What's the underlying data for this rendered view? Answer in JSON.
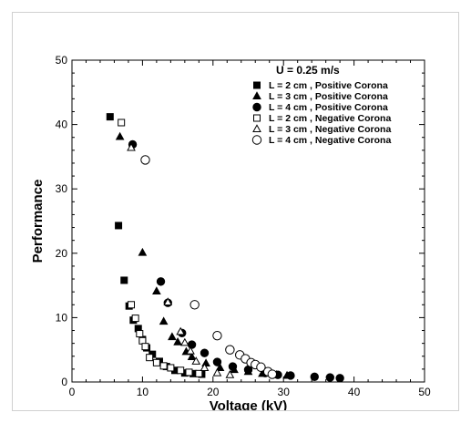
{
  "chart_data": {
    "type": "scatter",
    "title": "",
    "xlabel": "Voltage (kV)",
    "ylabel": "Performance",
    "xlim": [
      0,
      50
    ],
    "ylim": [
      0,
      50
    ],
    "xticks": [
      "0",
      "10",
      "20",
      "30",
      "40",
      "50"
    ],
    "yticks": [
      "0",
      "10",
      "20",
      "30",
      "40",
      "50"
    ],
    "grid": false,
    "legend_position": "top-right",
    "legend_header": "U = 0.25 m/s",
    "series": [
      {
        "name": "L = 2 cm , Positive Corona",
        "marker": "square",
        "filled": true,
        "points": [
          [
            5.4,
            41.2
          ],
          [
            6.6,
            24.3
          ],
          [
            7.4,
            15.8
          ],
          [
            8.1,
            11.8
          ],
          [
            8.7,
            9.6
          ],
          [
            9.4,
            8.3
          ],
          [
            10.0,
            6.6
          ],
          [
            10.6,
            5.3
          ],
          [
            11.4,
            4.3
          ],
          [
            12.4,
            3.2
          ],
          [
            13.4,
            2.4
          ],
          [
            14.6,
            1.8
          ],
          [
            16.0,
            1.4
          ],
          [
            17.2,
            1.3
          ],
          [
            18.4,
            1.2
          ]
        ]
      },
      {
        "name": "L = 3 cm , Positive Corona",
        "marker": "triangle",
        "filled": true,
        "points": [
          [
            6.8,
            38.1
          ],
          [
            10.0,
            20.1
          ],
          [
            12.0,
            14.1
          ],
          [
            13.0,
            9.4
          ],
          [
            14.2,
            7.0
          ],
          [
            15.0,
            6.2
          ],
          [
            16.2,
            4.7
          ],
          [
            17.0,
            3.9
          ],
          [
            19.0,
            2.9
          ],
          [
            21.0,
            2.2
          ],
          [
            23.0,
            1.9
          ],
          [
            25.0,
            1.6
          ],
          [
            27.0,
            1.3
          ],
          [
            29.0,
            1.1
          ],
          [
            30.5,
            1.0
          ]
        ]
      },
      {
        "name": "L = 4 cm , Positive Corona",
        "marker": "circle",
        "filled": true,
        "points": [
          [
            8.6,
            36.9
          ],
          [
            12.6,
            15.6
          ],
          [
            13.6,
            12.3
          ],
          [
            15.6,
            7.6
          ],
          [
            17.0,
            5.8
          ],
          [
            18.8,
            4.5
          ],
          [
            20.6,
            3.1
          ],
          [
            22.8,
            2.4
          ],
          [
            25.0,
            1.9
          ],
          [
            27.4,
            1.4
          ],
          [
            29.2,
            1.1
          ],
          [
            31.0,
            1.0
          ],
          [
            34.4,
            0.8
          ],
          [
            36.6,
            0.7
          ],
          [
            38.0,
            0.6
          ]
        ]
      },
      {
        "name": "L = 2 cm , Negative Corona",
        "marker": "square",
        "filled": false,
        "points": [
          [
            7.0,
            40.3
          ],
          [
            8.4,
            12.0
          ],
          [
            9.0,
            9.9
          ],
          [
            9.6,
            7.5
          ],
          [
            10.0,
            6.4
          ],
          [
            10.4,
            5.5
          ],
          [
            11.0,
            3.8
          ],
          [
            12.0,
            3.0
          ],
          [
            13.0,
            2.5
          ],
          [
            14.0,
            2.2
          ],
          [
            15.4,
            1.8
          ],
          [
            16.6,
            1.5
          ],
          [
            18.0,
            1.3
          ]
        ]
      },
      {
        "name": "L = 3 cm , Negative Corona",
        "marker": "triangle",
        "filled": false,
        "points": [
          [
            8.4,
            36.4
          ],
          [
            13.6,
            12.4
          ],
          [
            15.4,
            7.8
          ],
          [
            16.0,
            6.1
          ],
          [
            16.8,
            4.8
          ],
          [
            17.6,
            3.2
          ],
          [
            18.8,
            2.2
          ],
          [
            20.6,
            1.4
          ],
          [
            22.4,
            1.1
          ]
        ]
      },
      {
        "name": "L = 4 cm , Negative Corona",
        "marker": "circle",
        "filled": false,
        "points": [
          [
            10.4,
            34.5
          ],
          [
            17.4,
            12.0
          ],
          [
            20.6,
            7.2
          ],
          [
            22.4,
            5.0
          ],
          [
            23.8,
            4.2
          ],
          [
            24.6,
            3.6
          ],
          [
            25.4,
            3.0
          ],
          [
            26.0,
            2.7
          ],
          [
            26.8,
            2.3
          ],
          [
            27.8,
            1.6
          ],
          [
            28.4,
            1.2
          ]
        ]
      }
    ]
  }
}
